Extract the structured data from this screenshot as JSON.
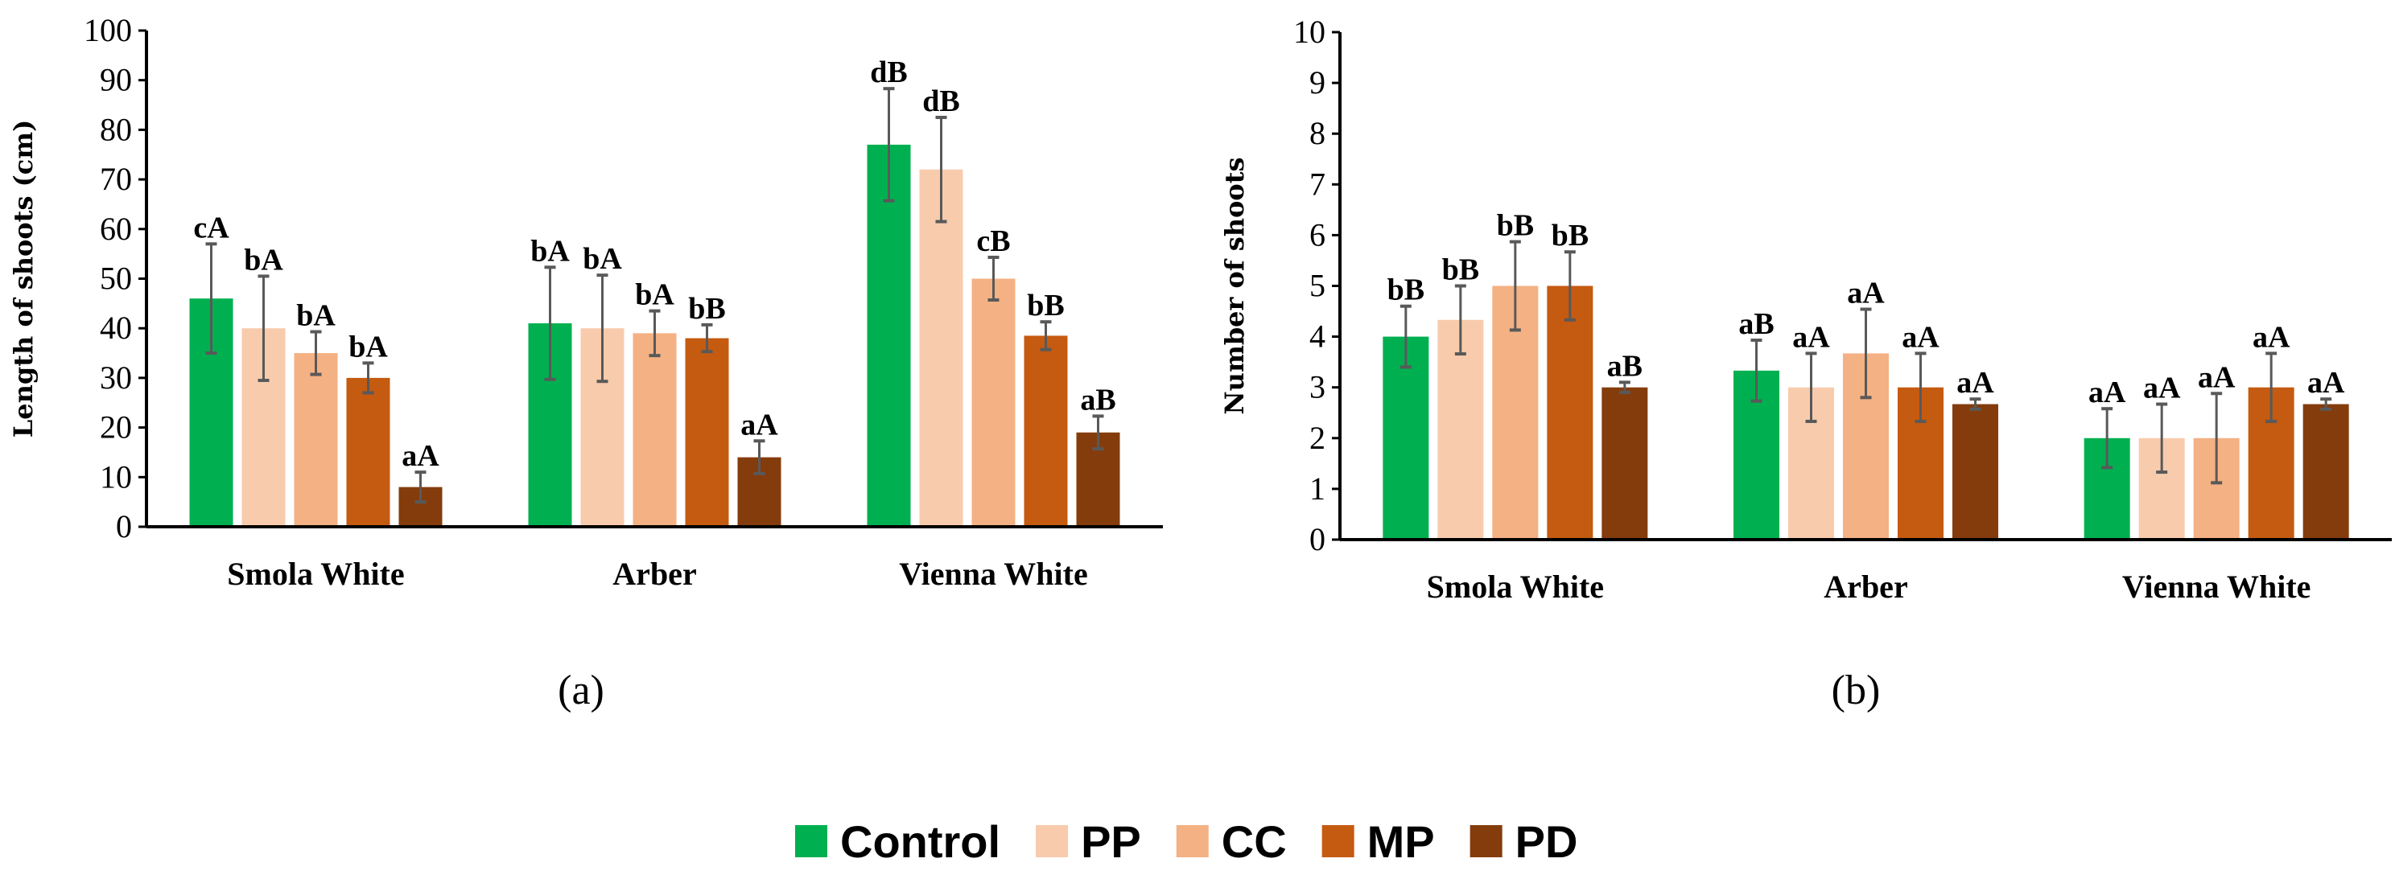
{
  "legend": [
    {
      "name": "Control",
      "color": "#00B050"
    },
    {
      "name": "PP",
      "color": "#F8CBAD"
    },
    {
      "name": "CC",
      "color": "#F4B183"
    },
    {
      "name": "MP",
      "color": "#C55A11"
    },
    {
      "name": "PD",
      "color": "#843C0C"
    }
  ],
  "chart_data": [
    {
      "type": "bar",
      "caption": "(a)",
      "ylabel": "Length of shoots (cm)",
      "xlabel": "",
      "ylim": [
        0,
        100
      ],
      "yticks": [
        0,
        10,
        20,
        30,
        40,
        50,
        60,
        70,
        80,
        90,
        100
      ],
      "categories": [
        "Smola White",
        "Arber",
        "Vienna White"
      ],
      "series": [
        {
          "name": "Control",
          "values": [
            46,
            41,
            77
          ],
          "errors": [
            11,
            11.3,
            11.3
          ],
          "labels": [
            "cA",
            "bA",
            "dB"
          ]
        },
        {
          "name": "PP",
          "values": [
            40,
            40,
            72
          ],
          "errors": [
            10.5,
            10.7,
            10.5
          ],
          "labels": [
            "bA",
            "bA",
            "dB"
          ]
        },
        {
          "name": "CC",
          "values": [
            35,
            39,
            50
          ],
          "errors": [
            4.3,
            4.5,
            4.3
          ],
          "labels": [
            "bA",
            "bA",
            "cB"
          ]
        },
        {
          "name": "MP",
          "values": [
            30,
            38,
            38.5
          ],
          "errors": [
            3,
            2.7,
            2.8
          ],
          "labels": [
            "bA",
            "bB",
            "bB"
          ]
        },
        {
          "name": "PD",
          "values": [
            8,
            14,
            19
          ],
          "errors": [
            3,
            3.3,
            3.3
          ],
          "labels": [
            "aA",
            "aA",
            "aB"
          ]
        }
      ]
    },
    {
      "type": "bar",
      "caption": "(b)",
      "ylabel": "Number of shoots",
      "xlabel": "",
      "ylim": [
        0,
        10
      ],
      "yticks": [
        0,
        1,
        2,
        3,
        4,
        5,
        6,
        7,
        8,
        9,
        10
      ],
      "categories": [
        "Smola White",
        "Arber",
        "Vienna White"
      ],
      "series": [
        {
          "name": "Control",
          "values": [
            4,
            3.33,
            2
          ],
          "errors": [
            0.6,
            0.6,
            0.58
          ],
          "labels": [
            "bB",
            "aB",
            "aA"
          ]
        },
        {
          "name": "PP",
          "values": [
            4.33,
            3,
            2
          ],
          "errors": [
            0.67,
            0.67,
            0.67
          ],
          "labels": [
            "bB",
            "aA",
            "aA"
          ]
        },
        {
          "name": "CC",
          "values": [
            5,
            3.67,
            2
          ],
          "errors": [
            0.87,
            0.87,
            0.88
          ],
          "labels": [
            "bB",
            "aA",
            "aA"
          ]
        },
        {
          "name": "MP",
          "values": [
            5,
            3,
            3
          ],
          "errors": [
            0.67,
            0.67,
            0.67
          ],
          "labels": [
            "bB",
            "aA",
            "aA"
          ]
        },
        {
          "name": "PD",
          "values": [
            3,
            2.67,
            2.67
          ],
          "errors": [
            0.1,
            0.1,
            0.1
          ],
          "labels": [
            "aB",
            "aA",
            "aA"
          ]
        }
      ]
    }
  ]
}
